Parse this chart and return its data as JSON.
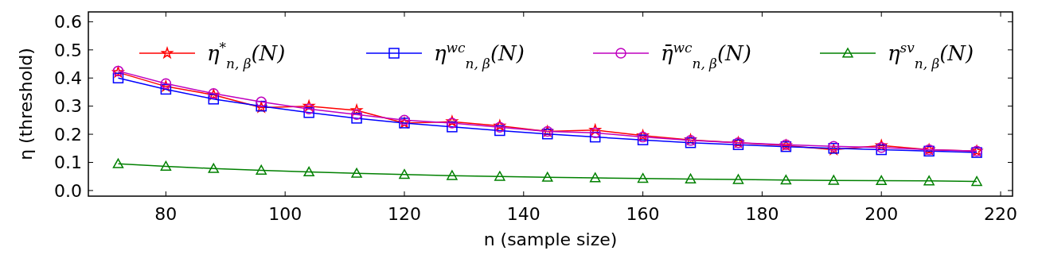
{
  "chart_data": {
    "type": "line",
    "xlabel": "n (sample size)",
    "ylabel": "η (threshold)",
    "x": [
      72,
      80,
      88,
      96,
      104,
      112,
      120,
      128,
      136,
      144,
      152,
      160,
      168,
      176,
      184,
      192,
      200,
      208,
      216
    ],
    "xlim": [
      67,
      222
    ],
    "xticks": [
      80,
      100,
      120,
      140,
      160,
      180,
      200,
      220
    ],
    "ylim": [
      -0.02,
      0.635
    ],
    "yticks": [
      {
        "value": 0,
        "label": "0.0"
      },
      0.1,
      0.2,
      0.3,
      0.4,
      0.5,
      0.6
    ],
    "legend": "top",
    "grid": false,
    "line_style": "solid",
    "series": [
      {
        "name": "η$^{*}$$_{n, β}$(N)",
        "color": "#ff0000",
        "marker": "star",
        "values": [
          0.42,
          0.37,
          0.34,
          0.295,
          0.3,
          0.285,
          0.24,
          0.245,
          0.23,
          0.21,
          0.215,
          0.195,
          0.18,
          0.17,
          0.16,
          0.145,
          0.16,
          0.145,
          0.14
        ]
      },
      {
        "name": "η$^{wc}$$_{n, β}$(N)",
        "color": "#0000ff",
        "marker": "square",
        "values": [
          0.4,
          0.36,
          0.325,
          0.3,
          0.277,
          0.257,
          0.24,
          0.226,
          0.213,
          0.201,
          0.19,
          0.18,
          0.17,
          0.163,
          0.156,
          0.15,
          0.145,
          0.14,
          0.135
        ]
      },
      {
        "name": "η̄$^{wc}$$_{n, β}$(N)",
        "color": "#bf00bf",
        "marker": "circle",
        "values": [
          0.425,
          0.38,
          0.345,
          0.315,
          0.29,
          0.27,
          0.25,
          0.24,
          0.225,
          0.21,
          0.205,
          0.19,
          0.178,
          0.17,
          0.163,
          0.157,
          0.153,
          0.145,
          0.14
        ]
      },
      {
        "name": "η$^{sv}$$_{n, β}$(N)",
        "color": "#008000",
        "marker": "triangle",
        "values": [
          0.095,
          0.086,
          0.078,
          0.072,
          0.066,
          0.061,
          0.057,
          0.053,
          0.05,
          0.047,
          0.045,
          0.043,
          0.041,
          0.039,
          0.037,
          0.036,
          0.035,
          0.034,
          0.032
        ]
      }
    ]
  }
}
